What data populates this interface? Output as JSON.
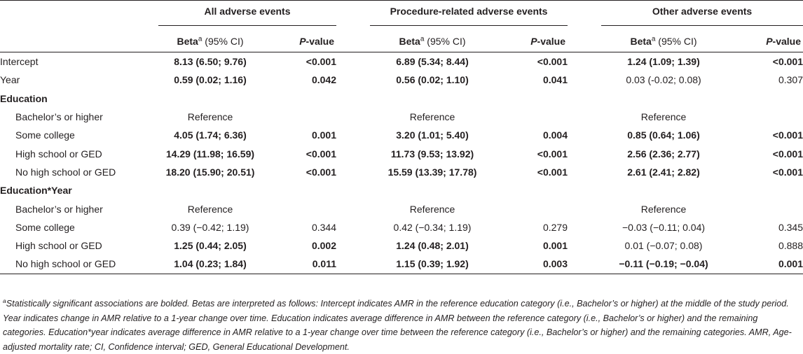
{
  "header": {
    "groups": [
      "All adverse events",
      "Procedure-related adverse events",
      "Other adverse events"
    ],
    "beta_label": "Beta",
    "beta_sup": "a",
    "ci_label": " (95% CI)",
    "p_letter": "P",
    "p_rest": "-value"
  },
  "rows": [
    {
      "label": "Intercept",
      "kind": "top",
      "cells": [
        {
          "beta": "8.13 (6.50; 9.76)",
          "beta_bold": true,
          "p": "<0.001",
          "p_bold": true
        },
        {
          "beta": "6.89 (5.34; 8.44)",
          "beta_bold": true,
          "p": "<0.001",
          "p_bold": true
        },
        {
          "beta": "1.24 (1.09; 1.39)",
          "beta_bold": true,
          "p": "<0.001",
          "p_bold": true
        }
      ]
    },
    {
      "label": "Year",
      "kind": "top",
      "cells": [
        {
          "beta": "0.59 (0.02; 1.16)",
          "beta_bold": true,
          "p": "0.042",
          "p_bold": true
        },
        {
          "beta": "0.56 (0.02; 1.10)",
          "beta_bold": true,
          "p": "0.041",
          "p_bold": true
        },
        {
          "beta": "0.03 (-0.02; 0.08)",
          "beta_bold": false,
          "p": "0.307",
          "p_bold": false
        }
      ]
    },
    {
      "label": "Education",
      "kind": "section",
      "cells": []
    },
    {
      "label": "Bachelor’s or higher",
      "kind": "indent",
      "cells": [
        {
          "beta": "Reference",
          "beta_bold": false,
          "p": "",
          "p_bold": false
        },
        {
          "beta": "Reference",
          "beta_bold": false,
          "p": "",
          "p_bold": false
        },
        {
          "beta": "Reference",
          "beta_bold": false,
          "p": "",
          "p_bold": false
        }
      ]
    },
    {
      "label": "Some college",
      "kind": "indent",
      "cells": [
        {
          "beta": "4.05 (1.74; 6.36)",
          "beta_bold": true,
          "p": "0.001",
          "p_bold": true
        },
        {
          "beta": "3.20 (1.01; 5.40)",
          "beta_bold": true,
          "p": "0.004",
          "p_bold": true
        },
        {
          "beta": "0.85 (0.64; 1.06)",
          "beta_bold": true,
          "p": "<0.001",
          "p_bold": true
        }
      ]
    },
    {
      "label": "High school or GED",
      "kind": "indent",
      "cells": [
        {
          "beta": "14.29 (11.98; 16.59)",
          "beta_bold": true,
          "p": "<0.001",
          "p_bold": true
        },
        {
          "beta": "11.73 (9.53; 13.92)",
          "beta_bold": true,
          "p": "<0.001",
          "p_bold": true
        },
        {
          "beta": "2.56 (2.36; 2.77)",
          "beta_bold": true,
          "p": "<0.001",
          "p_bold": true
        }
      ]
    },
    {
      "label": "No high school or GED",
      "kind": "indent",
      "cells": [
        {
          "beta": "18.20 (15.90; 20.51)",
          "beta_bold": true,
          "p": "<0.001",
          "p_bold": true
        },
        {
          "beta": "15.59 (13.39; 17.78)",
          "beta_bold": true,
          "p": "<0.001",
          "p_bold": true
        },
        {
          "beta": "2.61 (2.41; 2.82)",
          "beta_bold": true,
          "p": "<0.001",
          "p_bold": true
        }
      ]
    },
    {
      "label": "Education*Year",
      "kind": "section",
      "cells": []
    },
    {
      "label": "Bachelor’s or higher",
      "kind": "indent",
      "cells": [
        {
          "beta": "Reference",
          "beta_bold": false,
          "p": "",
          "p_bold": false
        },
        {
          "beta": "Reference",
          "beta_bold": false,
          "p": "",
          "p_bold": false
        },
        {
          "beta": "Reference",
          "beta_bold": false,
          "p": "",
          "p_bold": false
        }
      ]
    },
    {
      "label": "Some college",
      "kind": "indent",
      "cells": [
        {
          "beta": "0.39 (−0.42; 1.19)",
          "beta_bold": false,
          "p": "0.344",
          "p_bold": false
        },
        {
          "beta": "0.42 (−0.34; 1.19)",
          "beta_bold": false,
          "p": "0.279",
          "p_bold": false
        },
        {
          "beta": "−0.03 (−0.11; 0.04)",
          "beta_bold": false,
          "p": "0.345",
          "p_bold": false
        }
      ]
    },
    {
      "label": "High school or GED",
      "kind": "indent",
      "cells": [
        {
          "beta": "1.25 (0.44; 2.05)",
          "beta_bold": true,
          "p": "0.002",
          "p_bold": true
        },
        {
          "beta": "1.24 (0.48; 2.01)",
          "beta_bold": true,
          "p": "0.001",
          "p_bold": true
        },
        {
          "beta": "0.01 (−0.07; 0.08)",
          "beta_bold": false,
          "p": "0.888",
          "p_bold": false
        }
      ]
    },
    {
      "label": "No high school or GED",
      "kind": "indent",
      "cells": [
        {
          "beta": "1.04 (0.23; 1.84)",
          "beta_bold": true,
          "p": "0.011",
          "p_bold": true
        },
        {
          "beta": "1.15 (0.39; 1.92)",
          "beta_bold": true,
          "p": "0.003",
          "p_bold": true
        },
        {
          "beta": "−0.11 (−0.19; −0.04)",
          "beta_bold": true,
          "p": "0.001",
          "p_bold": true
        }
      ]
    }
  ],
  "footnote": {
    "marker": "a",
    "text": "Statistically significant associations are bolded. Betas are interpreted as follows: Intercept indicates AMR in the reference education category (i.e., Bachelor’s or higher) at the middle of the study period. Year indicates change in AMR relative to a 1-year change over time. Education indicates average difference in AMR between the reference category (i.e., Bachelor’s or higher) and the remaining categories. Education*year indicates average difference in AMR relative to a 1-year change over time between the reference category (i.e., Bachelor’s or higher) and the remaining categories. AMR, Age-adjusted mortality rate; CI, Confidence interval; GED, General Educational Development."
  }
}
